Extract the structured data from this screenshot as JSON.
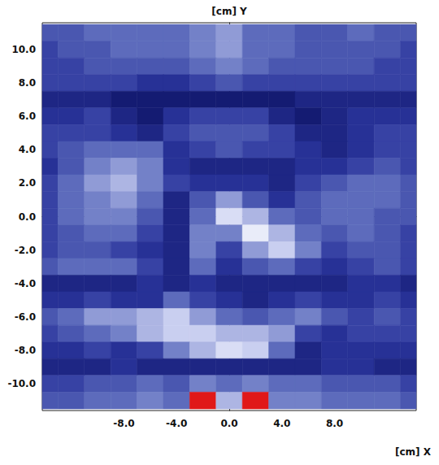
{
  "chart_data": {
    "type": "heatmap",
    "xlabel": "[cm] X",
    "ylabel": "[cm] Y",
    "xlim": [
      -14.2,
      14.2
    ],
    "ylim": [
      -11.6,
      11.6
    ],
    "xticks": [
      {
        "value": -8,
        "label": "-8.0"
      },
      {
        "value": -4,
        "label": "-4.0"
      },
      {
        "value": 0,
        "label": "0.0"
      },
      {
        "value": 4,
        "label": "4.0"
      },
      {
        "value": 8,
        "label": "8.0"
      }
    ],
    "yticks": [
      {
        "value": -10,
        "label": "-10.0"
      },
      {
        "value": -8,
        "label": "-8.0"
      },
      {
        "value": -6,
        "label": "-6.0"
      },
      {
        "value": -4,
        "label": "-4.0"
      },
      {
        "value": -2,
        "label": "-2.0"
      },
      {
        "value": 0,
        "label": "0.0"
      },
      {
        "value": 2,
        "label": "2.0"
      },
      {
        "value": 4,
        "label": "4.0"
      },
      {
        "value": 6,
        "label": "6.0"
      },
      {
        "value": 8,
        "label": "8.0"
      },
      {
        "value": 10,
        "label": "10.0"
      }
    ],
    "grid": false,
    "zlim": [
      0,
      1
    ],
    "x": [
      -14,
      -12,
      -10,
      -8,
      -6,
      -4,
      -2,
      0,
      2,
      4,
      6,
      8,
      10,
      12,
      14
    ],
    "y": [
      11,
      10,
      9,
      8,
      7,
      6,
      5,
      4,
      3,
      2,
      1,
      0,
      -1,
      -2,
      -3,
      -4,
      -5,
      -6,
      -7,
      -8,
      -9,
      -10,
      -11
    ],
    "values": [
      [
        0.25,
        0.25,
        0.3,
        0.3,
        0.3,
        0.3,
        0.35,
        0.4,
        0.3,
        0.3,
        0.25,
        0.25,
        0.3,
        0.25,
        0.25
      ],
      [
        0.2,
        0.25,
        0.25,
        0.3,
        0.3,
        0.3,
        0.35,
        0.4,
        0.3,
        0.3,
        0.25,
        0.25,
        0.25,
        0.25,
        0.2
      ],
      [
        0.2,
        0.2,
        0.25,
        0.25,
        0.25,
        0.25,
        0.3,
        0.35,
        0.3,
        0.25,
        0.25,
        0.25,
        0.25,
        0.2,
        0.2
      ],
      [
        0.2,
        0.2,
        0.2,
        0.2,
        0.15,
        0.15,
        0.2,
        0.25,
        0.2,
        0.2,
        0.2,
        0.2,
        0.2,
        0.2,
        0.2
      ],
      [
        0.1,
        0.1,
        0.1,
        0.05,
        0.05,
        0.05,
        0.05,
        0.05,
        0.05,
        0.05,
        0.1,
        0.1,
        0.1,
        0.1,
        0.1
      ],
      [
        0.15,
        0.15,
        0.2,
        0.1,
        0.05,
        0.15,
        0.2,
        0.2,
        0.2,
        0.1,
        0.05,
        0.1,
        0.15,
        0.15,
        0.15
      ],
      [
        0.2,
        0.2,
        0.2,
        0.15,
        0.1,
        0.2,
        0.25,
        0.25,
        0.25,
        0.2,
        0.1,
        0.1,
        0.15,
        0.2,
        0.2
      ],
      [
        0.2,
        0.25,
        0.3,
        0.3,
        0.3,
        0.15,
        0.2,
        0.25,
        0.2,
        0.2,
        0.15,
        0.1,
        0.15,
        0.2,
        0.2
      ],
      [
        0.15,
        0.25,
        0.35,
        0.4,
        0.35,
        0.15,
        0.1,
        0.1,
        0.1,
        0.1,
        0.15,
        0.15,
        0.2,
        0.25,
        0.2
      ],
      [
        0.2,
        0.3,
        0.4,
        0.45,
        0.35,
        0.2,
        0.15,
        0.15,
        0.15,
        0.1,
        0.2,
        0.25,
        0.3,
        0.3,
        0.25
      ],
      [
        0.2,
        0.3,
        0.35,
        0.4,
        0.3,
        0.1,
        0.25,
        0.4,
        0.25,
        0.15,
        0.25,
        0.3,
        0.3,
        0.3,
        0.25
      ],
      [
        0.2,
        0.3,
        0.35,
        0.35,
        0.25,
        0.1,
        0.3,
        0.55,
        0.45,
        0.3,
        0.25,
        0.3,
        0.3,
        0.25,
        0.25
      ],
      [
        0.2,
        0.25,
        0.3,
        0.3,
        0.2,
        0.1,
        0.35,
        0.35,
        0.6,
        0.45,
        0.3,
        0.25,
        0.3,
        0.25,
        0.2
      ],
      [
        0.2,
        0.25,
        0.25,
        0.2,
        0.15,
        0.1,
        0.35,
        0.2,
        0.4,
        0.5,
        0.35,
        0.2,
        0.25,
        0.25,
        0.2
      ],
      [
        0.25,
        0.3,
        0.3,
        0.3,
        0.2,
        0.1,
        0.3,
        0.15,
        0.25,
        0.3,
        0.2,
        0.15,
        0.2,
        0.25,
        0.2
      ],
      [
        0.1,
        0.1,
        0.1,
        0.1,
        0.15,
        0.1,
        0.15,
        0.1,
        0.1,
        0.1,
        0.1,
        0.1,
        0.15,
        0.15,
        0.1
      ],
      [
        0.15,
        0.15,
        0.2,
        0.15,
        0.15,
        0.3,
        0.2,
        0.15,
        0.1,
        0.15,
        0.2,
        0.15,
        0.15,
        0.2,
        0.15
      ],
      [
        0.25,
        0.3,
        0.4,
        0.4,
        0.45,
        0.5,
        0.4,
        0.3,
        0.25,
        0.3,
        0.35,
        0.25,
        0.2,
        0.25,
        0.2
      ],
      [
        0.2,
        0.25,
        0.3,
        0.35,
        0.45,
        0.5,
        0.5,
        0.45,
        0.45,
        0.4,
        0.2,
        0.15,
        0.2,
        0.2,
        0.2
      ],
      [
        0.15,
        0.15,
        0.2,
        0.15,
        0.2,
        0.35,
        0.45,
        0.55,
        0.5,
        0.3,
        0.1,
        0.15,
        0.15,
        0.15,
        0.15
      ],
      [
        0.1,
        0.1,
        0.1,
        0.15,
        0.1,
        0.1,
        0.1,
        0.1,
        0.1,
        0.1,
        0.1,
        0.15,
        0.15,
        0.1,
        0.1
      ],
      [
        0.2,
        0.2,
        0.25,
        0.25,
        0.3,
        0.25,
        0.35,
        0.3,
        0.35,
        0.3,
        0.3,
        0.25,
        0.25,
        0.25,
        0.2
      ],
      [
        0.25,
        0.25,
        0.3,
        0.3,
        0.35,
        0.3,
        1.0,
        0.45,
        1.0,
        0.35,
        0.35,
        0.3,
        0.3,
        0.3,
        0.25
      ]
    ]
  }
}
